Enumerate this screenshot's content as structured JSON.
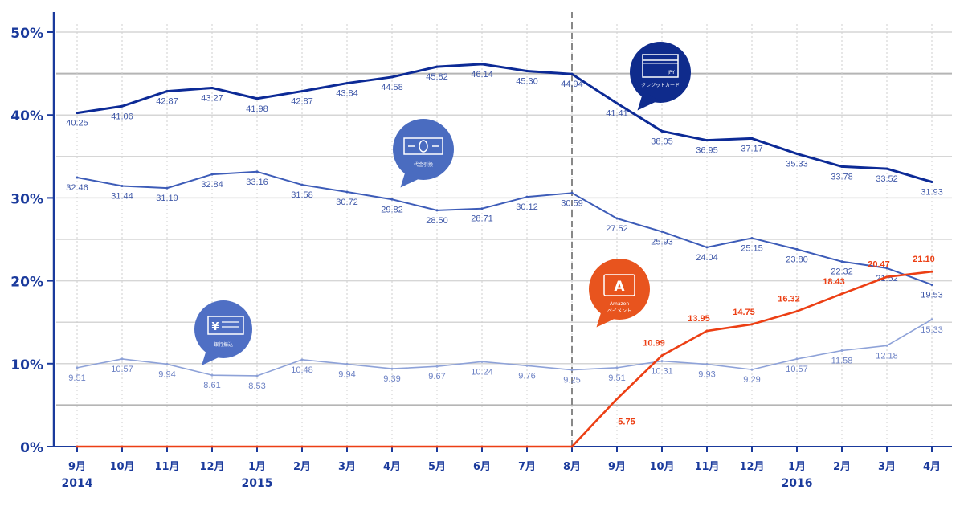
{
  "chart_data": {
    "type": "line",
    "title": "",
    "xlabel": "",
    "ylabel": "",
    "ylim": [
      0,
      50
    ],
    "yticks": [
      "0%",
      "10%",
      "20%",
      "30%",
      "40%",
      "50%"
    ],
    "grid": true,
    "categories": [
      "9月",
      "10月",
      "11月",
      "12月",
      "1月",
      "2月",
      "3月",
      "4月",
      "5月",
      "6月",
      "7月",
      "8月",
      "9月",
      "10月",
      "11月",
      "12月",
      "1月",
      "2月",
      "3月",
      "4月"
    ],
    "year_labels": [
      {
        "index": 0,
        "label": "2014"
      },
      {
        "index": 4,
        "label": "2015"
      },
      {
        "index": 16,
        "label": "2016"
      }
    ],
    "marker_index": 11,
    "series": [
      {
        "name": "クレジットカード",
        "color": "#0c2a96",
        "icon": "credit-card-icon",
        "values": [
          40.25,
          41.06,
          42.87,
          43.27,
          41.98,
          42.87,
          43.84,
          44.58,
          45.82,
          46.14,
          45.3,
          44.94,
          41.41,
          38.05,
          36.95,
          37.17,
          35.33,
          33.78,
          33.52,
          31.93
        ]
      },
      {
        "name": "代金引換",
        "color": "#3d5cb8",
        "icon": "cash-on-delivery-icon",
        "values": [
          32.46,
          31.44,
          31.19,
          32.84,
          33.16,
          31.58,
          30.72,
          29.82,
          28.5,
          28.71,
          30.12,
          30.59,
          27.52,
          25.93,
          24.04,
          25.15,
          23.8,
          22.32,
          21.52,
          19.53
        ]
      },
      {
        "name": "銀行振込",
        "color": "#8ea2d8",
        "icon": "bank-transfer-icon",
        "values": [
          9.51,
          10.57,
          9.94,
          8.61,
          8.53,
          10.48,
          9.94,
          9.39,
          9.67,
          10.24,
          9.76,
          9.25,
          9.51,
          10.31,
          9.93,
          9.29,
          10.57,
          11.58,
          12.18,
          15.33
        ]
      },
      {
        "name": "Amazon ペイメント",
        "color": "#ec3f14",
        "icon": "amazon-payments-icon",
        "values": [
          0,
          0,
          0,
          0,
          0,
          0,
          0,
          0,
          0,
          0,
          0,
          0,
          5.75,
          10.99,
          13.95,
          14.75,
          16.32,
          18.43,
          20.47,
          21.1
        ]
      }
    ],
    "bubbles": {
      "card": {
        "text": "クレジットカード",
        "card_mark": "JPY"
      },
      "cash": {
        "text": "代金引換"
      },
      "bank": {
        "text": "銀行振込",
        "mark": "¥"
      },
      "amazon": {
        "text1": "Amazon",
        "text2": "ペイメント",
        "mark": "A"
      }
    }
  }
}
